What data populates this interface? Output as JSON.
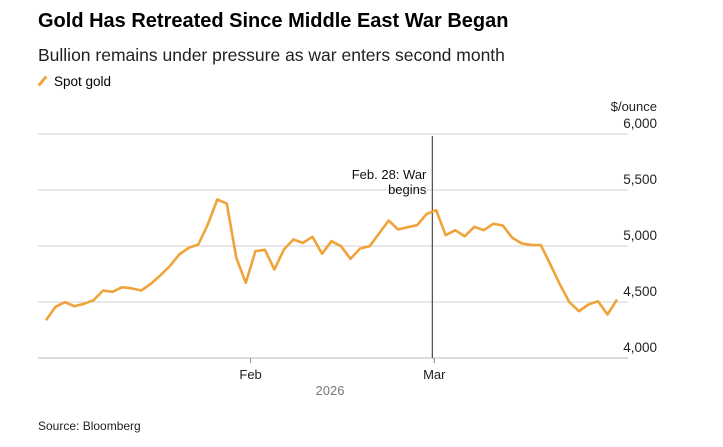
{
  "chart_data": {
    "type": "line",
    "title": "Gold Has Retreated Since Middle East War Began",
    "subtitle": "Bullion remains under pressure as war enters second month",
    "legend": [
      "Spot gold"
    ],
    "legend_placement": "top-left",
    "ylabel": "$/ounce",
    "ylim": [
      4000,
      6000
    ],
    "yticks": [
      4000,
      4500,
      5000,
      5500,
      6000
    ],
    "ytick_labels": [
      "4,000",
      "4,500",
      "5,000",
      "5,500",
      "6,000"
    ],
    "xticks": [
      {
        "label": "Feb",
        "index": 21.5
      },
      {
        "label": "Mar",
        "index": 40.8
      }
    ],
    "year_label": "2026",
    "annotation": {
      "text": [
        "Feb. 28: War",
        "begins"
      ],
      "index": 40.6
    },
    "series": [
      {
        "name": "Spot gold",
        "color": "#f0a33a",
        "values": [
          4337,
          4457,
          4498,
          4462,
          4484,
          4516,
          4603,
          4591,
          4632,
          4621,
          4603,
          4662,
          4737,
          4820,
          4924,
          4984,
          5013,
          5192,
          5415,
          5379,
          4895,
          4671,
          4954,
          4966,
          4790,
          4969,
          5058,
          5028,
          5082,
          4930,
          5043,
          4998,
          4886,
          4978,
          4998,
          5112,
          5228,
          5147,
          5168,
          5186,
          5287,
          5320,
          5096,
          5141,
          5087,
          5171,
          5141,
          5198,
          5183,
          5073,
          5022,
          5010,
          5007,
          4835,
          4656,
          4498,
          4418,
          4478,
          4507,
          4388,
          4522
        ]
      }
    ],
    "grid": true
  },
  "source": "Source: Bloomberg"
}
